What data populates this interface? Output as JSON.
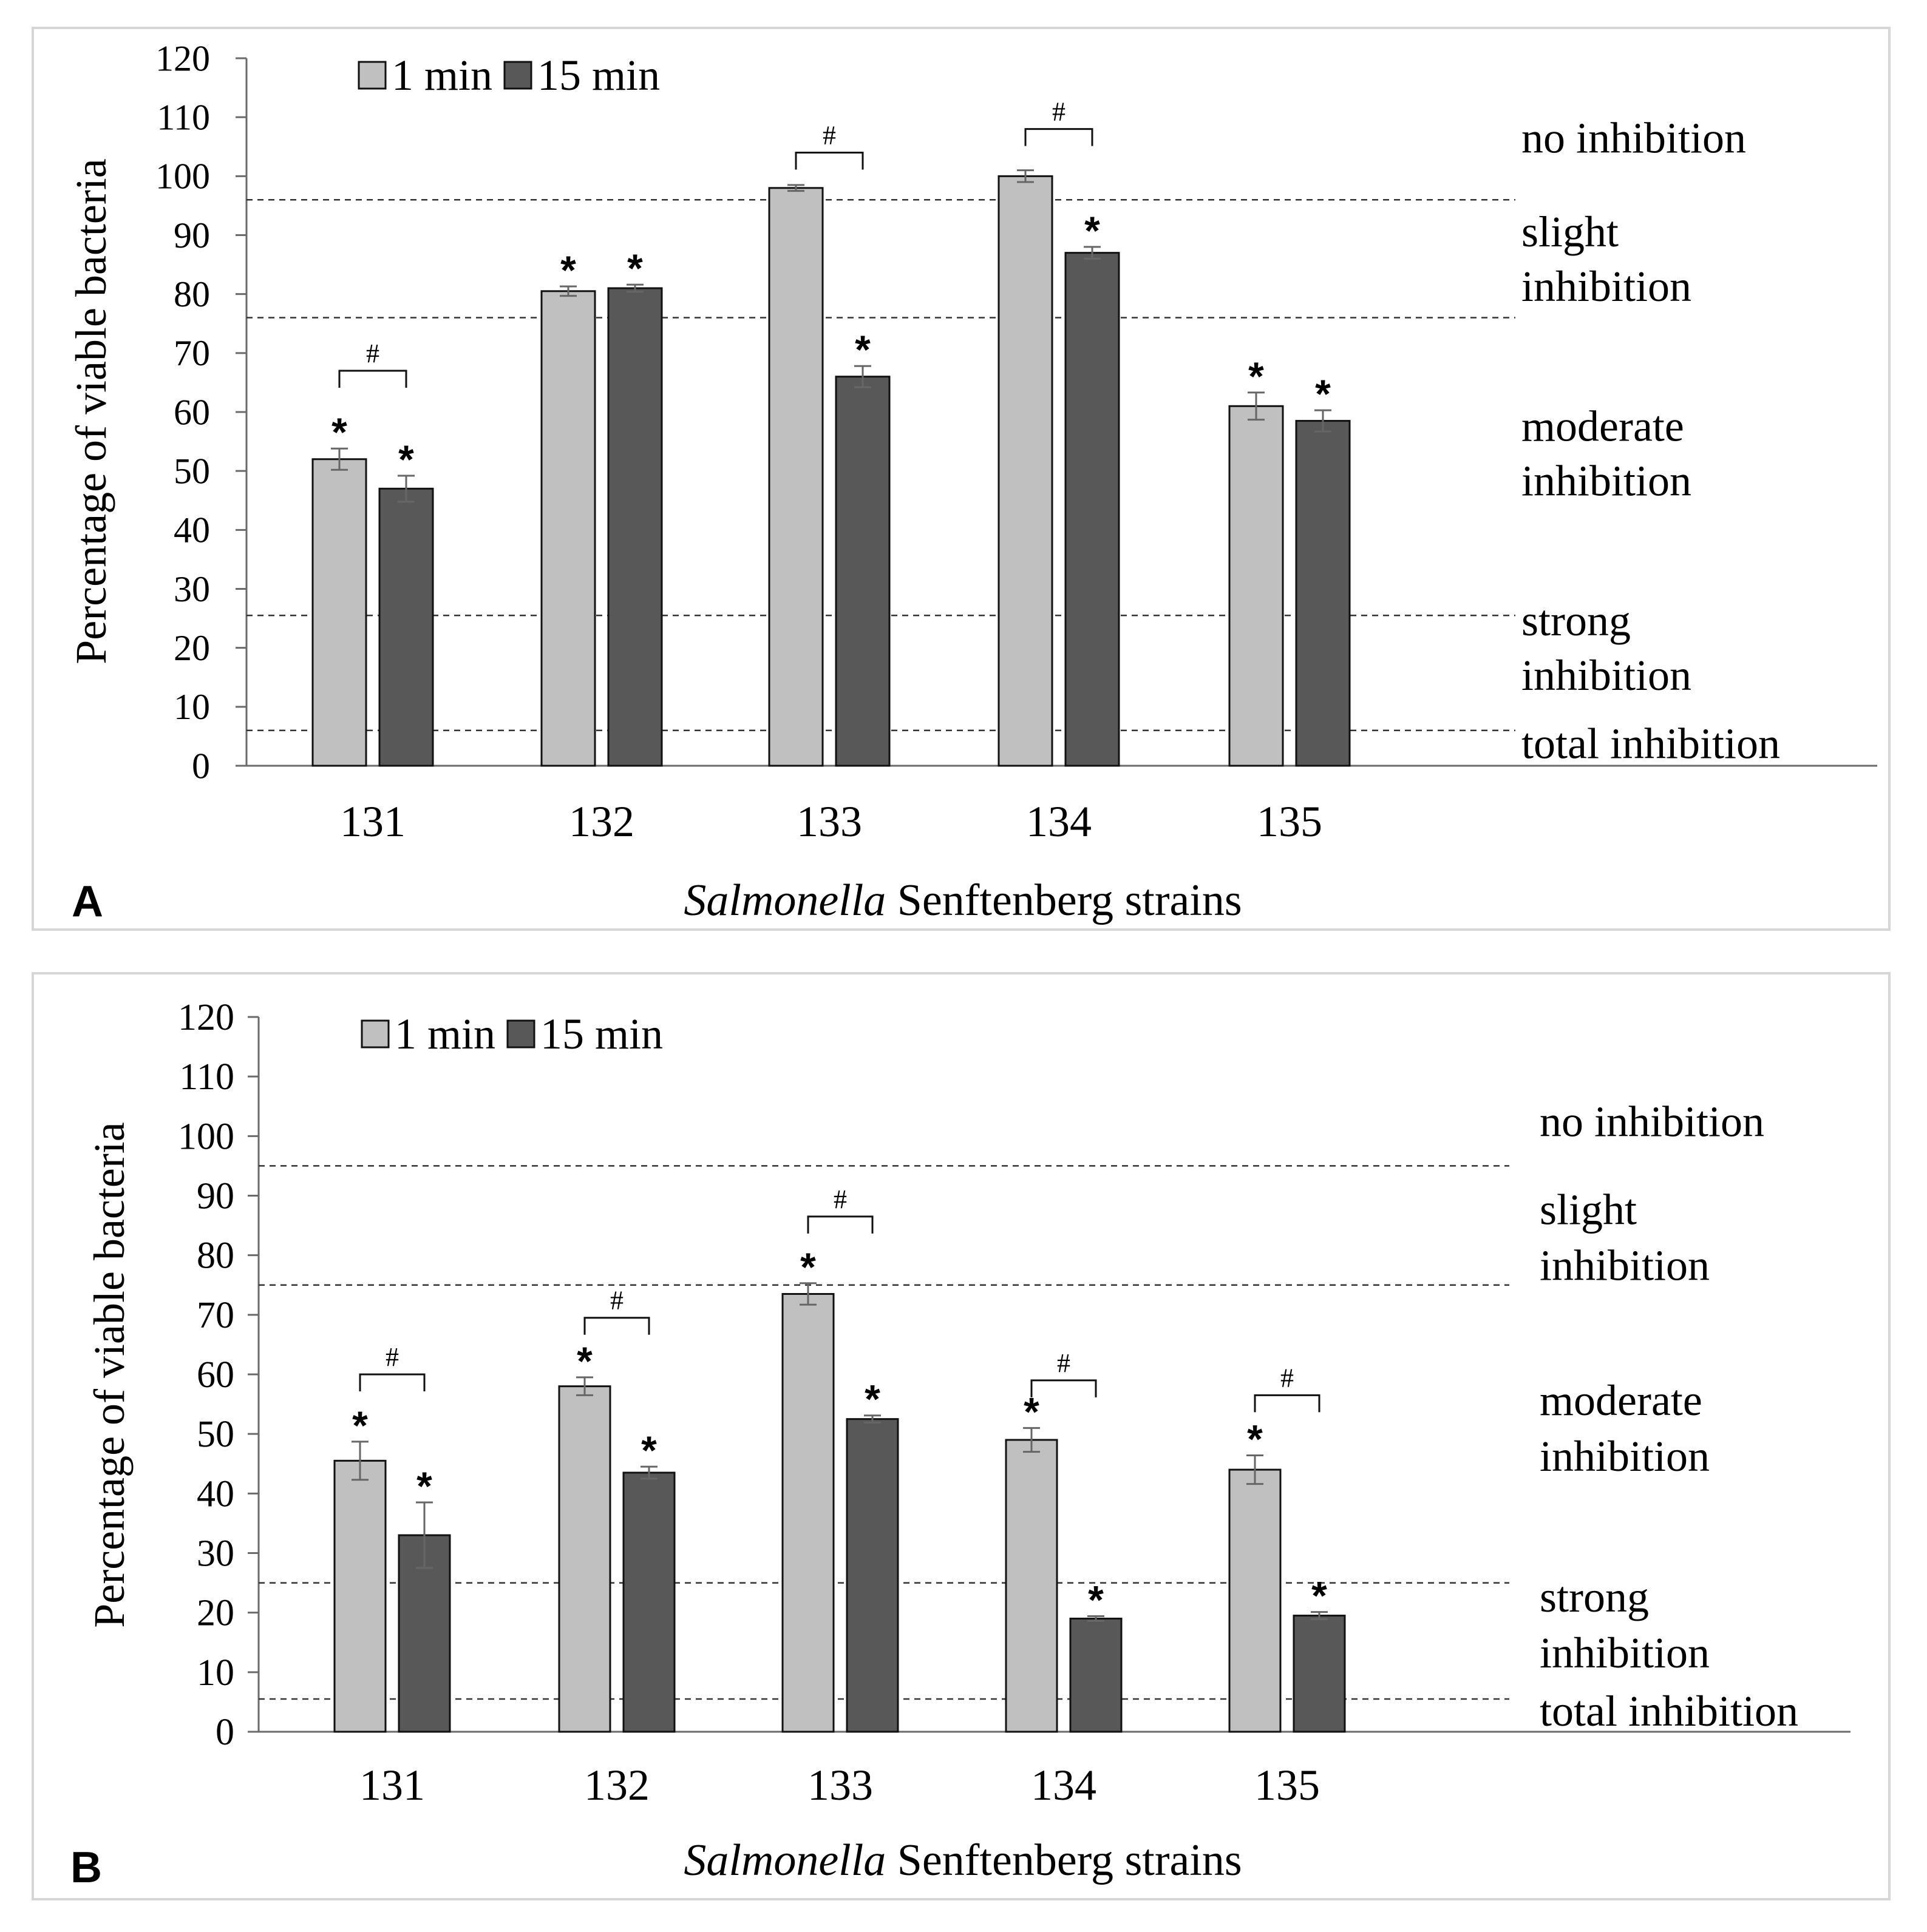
{
  "chart_data": [
    {
      "type": "bar",
      "panel_label": "A",
      "categories": [
        "131",
        "132",
        "133",
        "134",
        "135"
      ],
      "series": [
        {
          "name": "1 min",
          "color": "#c0c0c0",
          "values": [
            52,
            80.5,
            98,
            100,
            61
          ],
          "errors": [
            1.8,
            0.8,
            0.5,
            1,
            2.3
          ],
          "stars": [
            true,
            true,
            false,
            false,
            true
          ]
        },
        {
          "name": "15 min",
          "color": "#585858",
          "values": [
            47,
            81,
            66,
            87,
            58.5
          ],
          "errors": [
            2.2,
            0.6,
            1.8,
            1,
            1.8
          ],
          "stars": [
            true,
            true,
            true,
            true,
            true
          ]
        }
      ],
      "brackets": [
        {
          "category": 0,
          "level": 67,
          "label": "#"
        },
        {
          "category": 2,
          "level": 104,
          "label": "#"
        },
        {
          "category": 3,
          "level": 108,
          "label": "#"
        }
      ],
      "star_label": "*",
      "ylabel": "Percentage of viable bacteria",
      "xlabel_italic": "Salmonella",
      "xlabel_rest": " Senftenberg strains",
      "ylim": [
        0,
        120
      ],
      "yticks": [
        0,
        10,
        20,
        30,
        40,
        50,
        60,
        70,
        80,
        90,
        100,
        110,
        120
      ],
      "thresholds": [
        96,
        76,
        25.5,
        6
      ],
      "zones": [
        {
          "lines": [
            "no inhibition"
          ],
          "y": 106.5
        },
        {
          "lines": [
            "slight",
            "inhibition"
          ],
          "y": 86
        },
        {
          "lines": [
            "moderate",
            "inhibition"
          ],
          "y": 53
        },
        {
          "lines": [
            "strong",
            "inhibition"
          ],
          "y": 20
        },
        {
          "lines": [
            "total inhibition"
          ],
          "y": 3.8
        }
      ],
      "legend_position": "top-left"
    },
    {
      "type": "bar",
      "panel_label": "B",
      "categories": [
        "131",
        "132",
        "133",
        "134",
        "135"
      ],
      "series": [
        {
          "name": "1 min",
          "color": "#c0c0c0",
          "values": [
            45.5,
            58,
            73.5,
            49,
            44
          ],
          "errors": [
            3.2,
            1.5,
            1.8,
            2,
            2.4
          ],
          "stars": [
            true,
            true,
            true,
            true,
            true
          ]
        },
        {
          "name": "15 min",
          "color": "#585858",
          "values": [
            33,
            43.5,
            52.5,
            19,
            19.5
          ],
          "errors": [
            5.5,
            1,
            0.6,
            0.4,
            0.6
          ],
          "stars": [
            true,
            true,
            true,
            true,
            true
          ]
        }
      ],
      "brackets": [
        {
          "category": 0,
          "level": 60,
          "label": "#"
        },
        {
          "category": 1,
          "level": 69.5,
          "label": "#"
        },
        {
          "category": 2,
          "level": 86.5,
          "label": "#"
        },
        {
          "category": 3,
          "level": 59,
          "label": "#"
        },
        {
          "category": 4,
          "level": 56.5,
          "label": "#"
        }
      ],
      "star_label": "*",
      "ylabel": "Percentage of viable bacteria",
      "xlabel_italic": "Salmonella",
      "xlabel_rest": " Senftenberg strains",
      "ylim": [
        0,
        120
      ],
      "yticks": [
        0,
        10,
        20,
        30,
        40,
        50,
        60,
        70,
        80,
        90,
        100,
        110,
        120
      ],
      "thresholds": [
        95,
        75,
        25,
        5.5
      ],
      "zones": [
        {
          "lines": [
            "no inhibition"
          ],
          "y": 102.5
        },
        {
          "lines": [
            "slight",
            "inhibition"
          ],
          "y": 83
        },
        {
          "lines": [
            "moderate",
            "inhibition"
          ],
          "y": 51
        },
        {
          "lines": [
            "strong",
            "inhibition"
          ],
          "y": 18
        },
        {
          "lines": [
            "total inhibition"
          ],
          "y": 3.5
        }
      ],
      "legend_position": "top-left"
    }
  ]
}
